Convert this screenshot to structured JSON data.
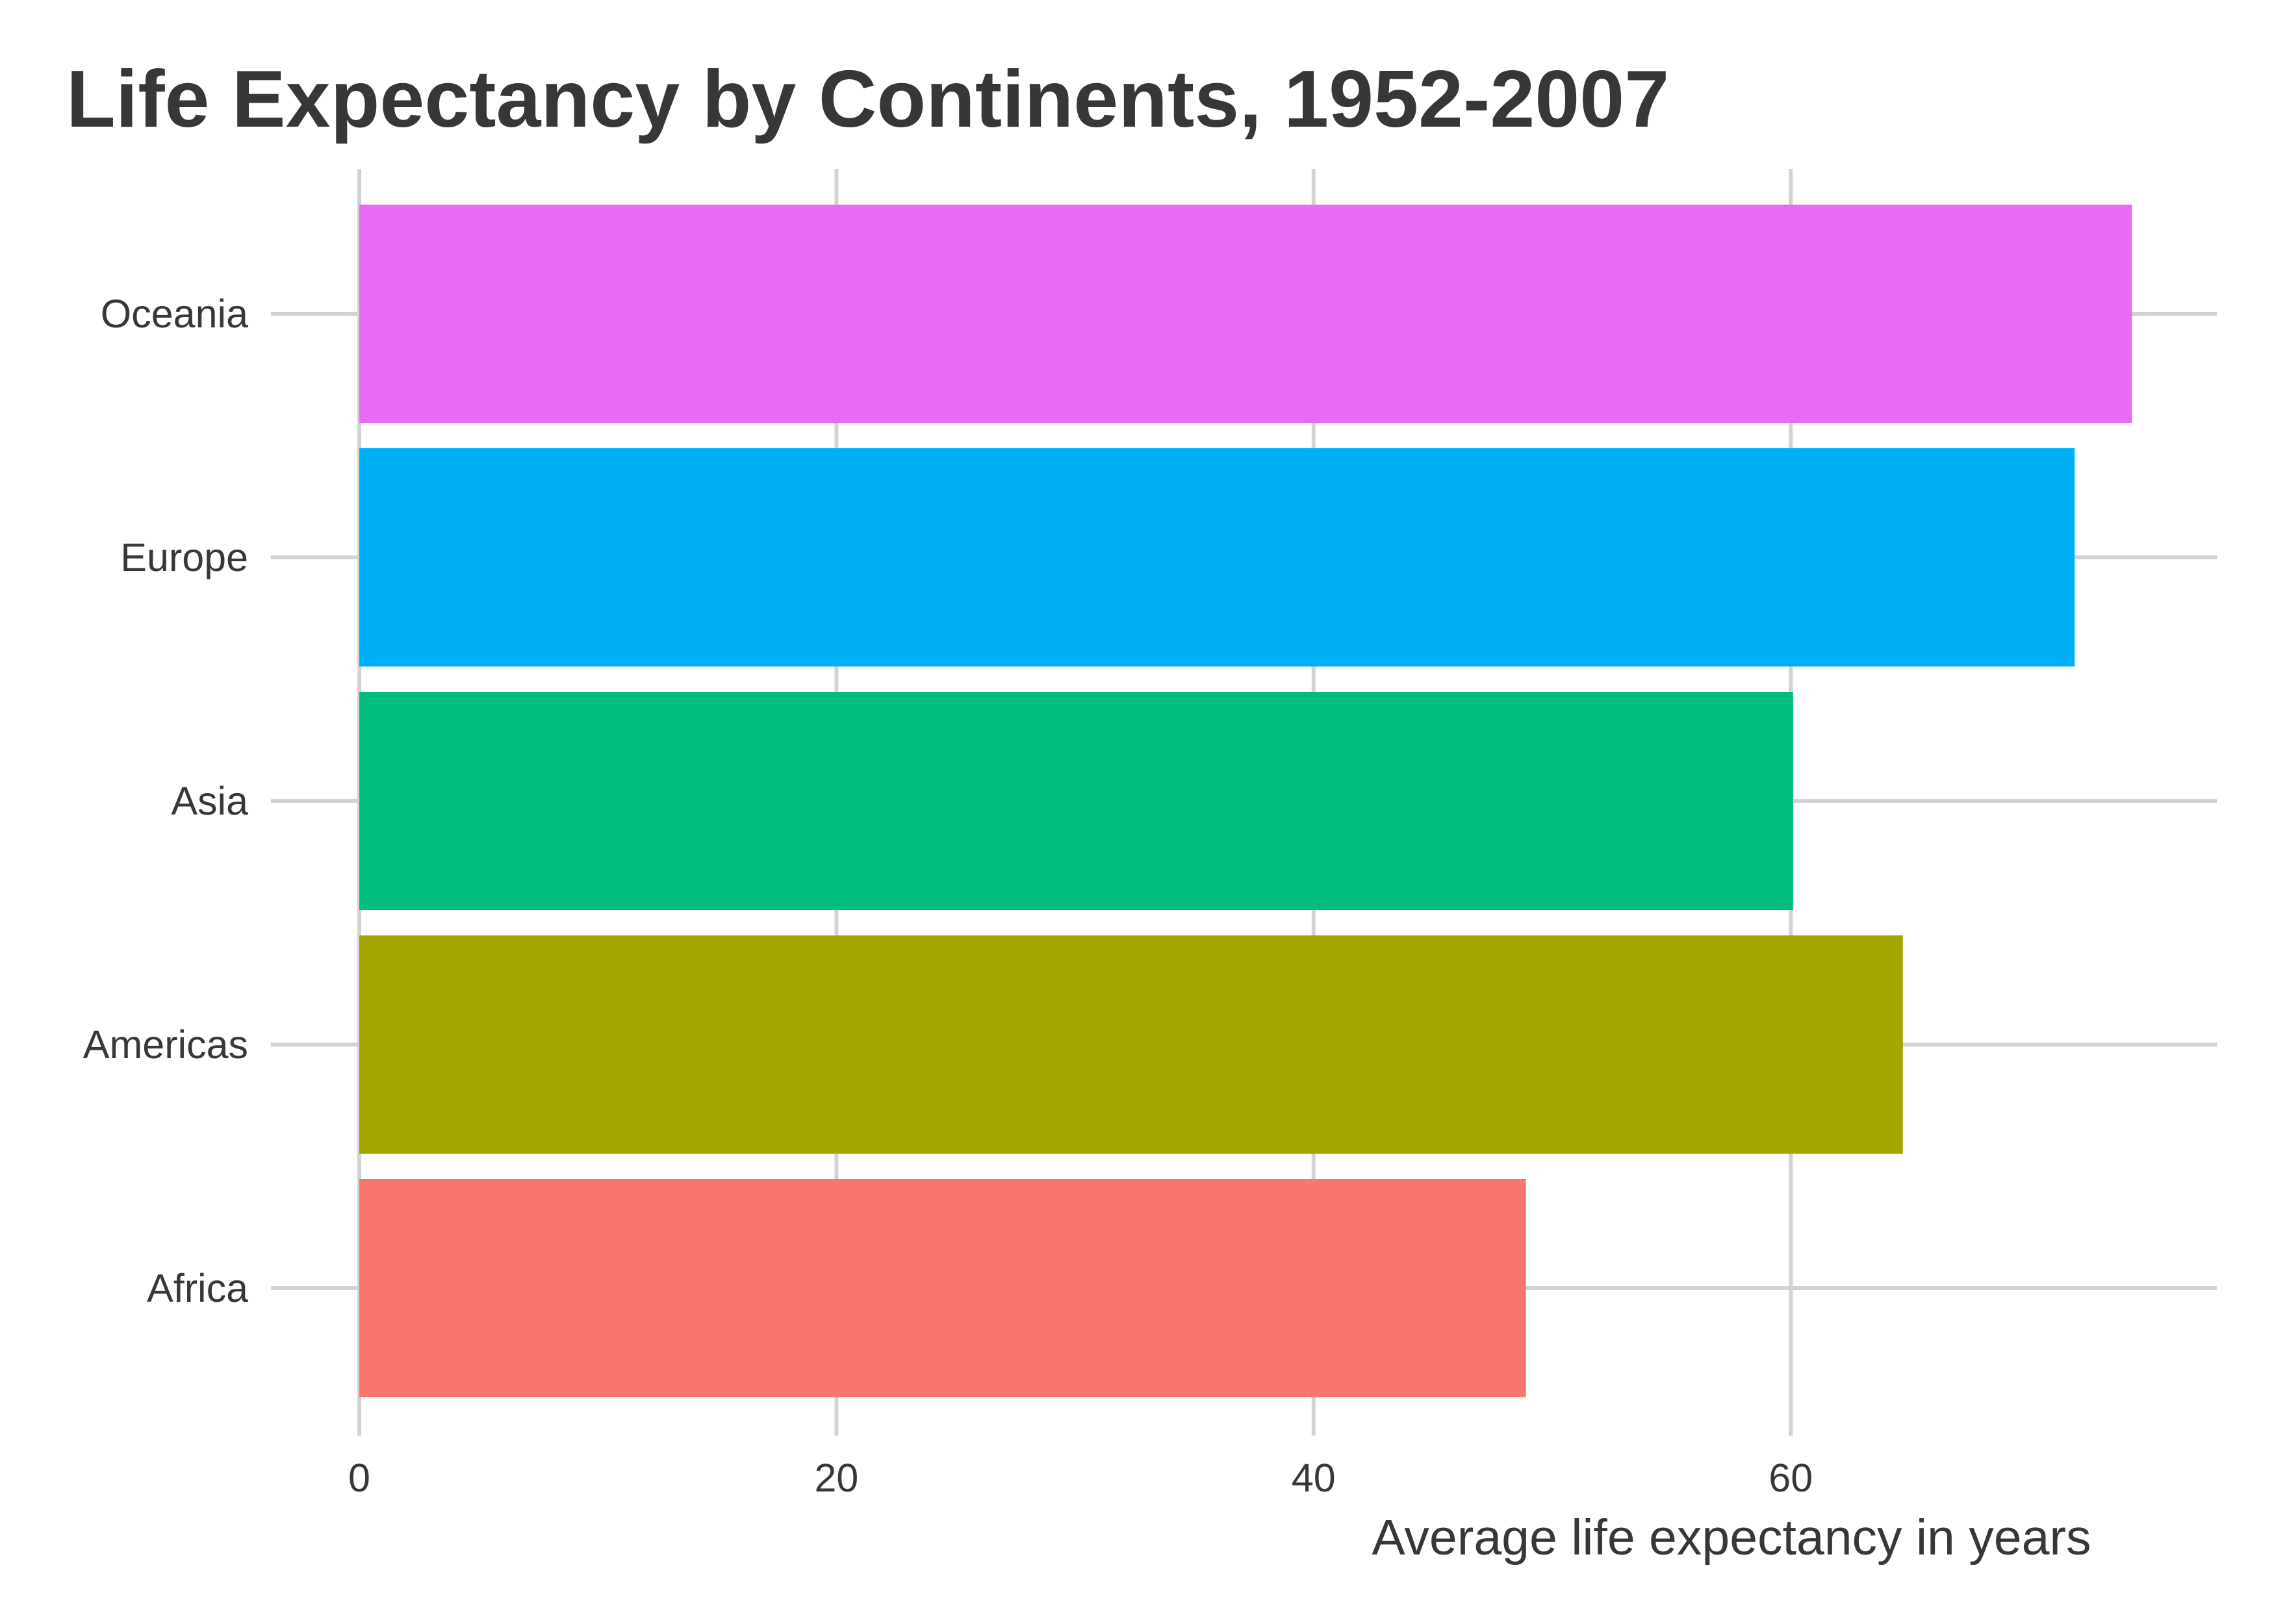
{
  "chart_data": {
    "type": "bar",
    "orientation": "horizontal",
    "title": "Life Expectancy by Continents, 1952-2007",
    "xlabel": "Average life expectancy in years",
    "ylabel": "",
    "categories": [
      "Africa",
      "Americas",
      "Asia",
      "Europe",
      "Oceania"
    ],
    "values": [
      48.9,
      64.7,
      60.1,
      71.9,
      74.3
    ],
    "colors": [
      "#F8766D",
      "#A3A500",
      "#00BF7D",
      "#00B0F6",
      "#E76BF3"
    ],
    "xlim": [
      0,
      78
    ],
    "xticks": [
      0,
      20,
      40,
      60
    ],
    "grid": true,
    "legend": "none"
  }
}
